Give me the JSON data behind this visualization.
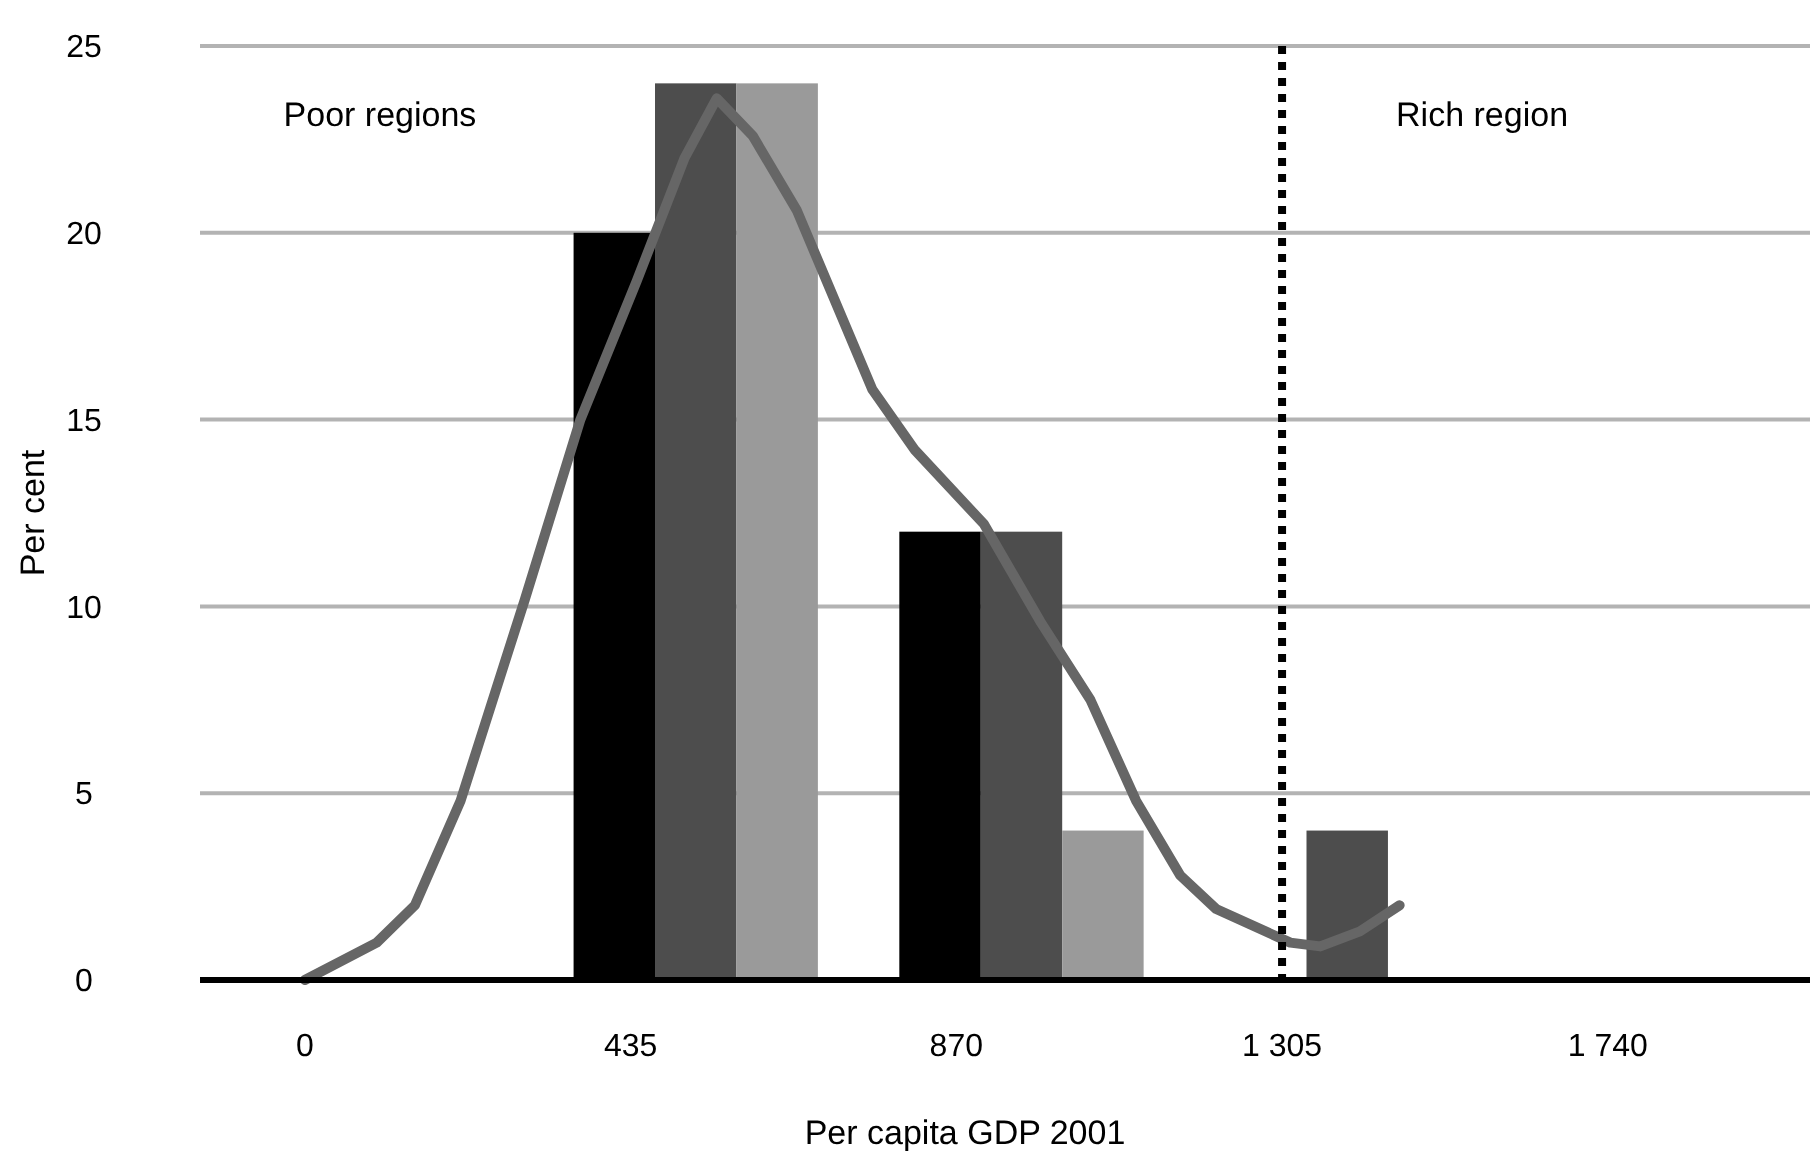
{
  "chart_data": {
    "type": "bar",
    "xlabel": "Per capita GDP 2001",
    "ylabel": "Per cent",
    "x": [
      522,
      957,
      1392
    ],
    "series": [
      {
        "color": "#000000",
        "values": [
          20,
          12,
          0
        ]
      },
      {
        "color": "#4d4d4d",
        "values": [
          24,
          12,
          4
        ]
      },
      {
        "color": "#9a9a9a",
        "values": [
          24,
          4,
          0
        ]
      },
      {
        "type": "line",
        "color": "#666666",
        "x": [
          0,
          96,
          147,
          208,
          294,
          368,
          443,
          507,
          550,
          598,
          657,
          758,
          814,
          907,
          982,
          1049,
          1110,
          1169,
          1217,
          1316,
          1356,
          1409,
          1462
        ],
        "values": [
          0,
          1,
          2,
          4.8,
          10.2,
          15,
          18.7,
          22,
          23.6,
          22.6,
          20.6,
          15.8,
          14.2,
          12.2,
          9.6,
          7.5,
          4.8,
          2.8,
          1.9,
          1,
          0.9,
          1.3,
          2
        ]
      }
    ],
    "xlim": [
      -140,
      2010
    ],
    "ylim": [
      0,
      25
    ],
    "xticks": [
      0,
      435,
      870,
      {
        "value": 1305,
        "label": "1 305"
      },
      {
        "value": 1740,
        "label": "1 740"
      }
    ],
    "yticks": [
      0,
      5,
      10,
      15,
      20,
      25
    ],
    "grid": "y",
    "marker": "none",
    "ref_lines": [
      {
        "axis": "x",
        "value": 1305,
        "color": "#000000",
        "line_style": "dotted"
      }
    ],
    "annotations": [
      "Poor regions",
      "Rich region"
    ]
  }
}
